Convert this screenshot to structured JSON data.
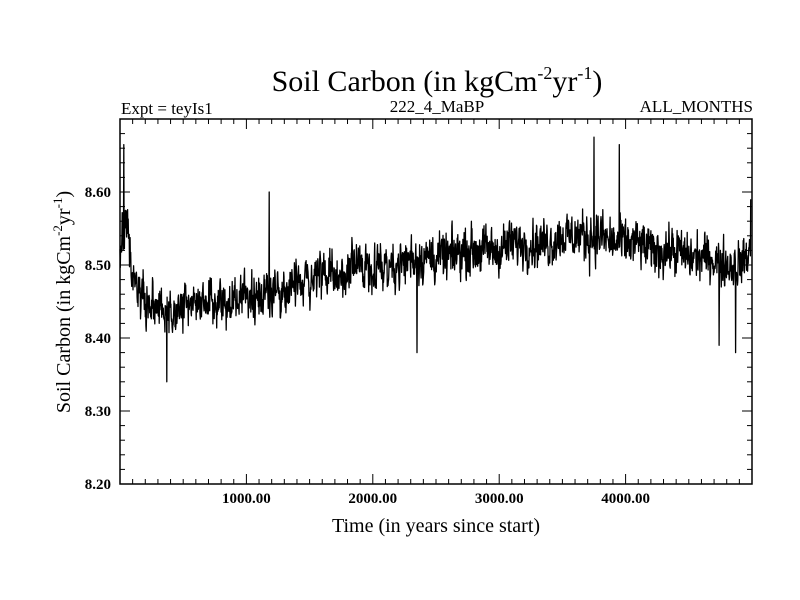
{
  "chart_data": {
    "type": "line",
    "title": {
      "text": "Soil Carbon (in kgCm",
      "sup1": "-2",
      "mid": "yr",
      "sup2": "-1",
      "end": ")"
    },
    "subtitle_left": "Expt = teyIs1",
    "subtitle_center": "222_4_MaBP",
    "subtitle_right": "ALL_MONTHS",
    "xlabel": "Time (in years since start)",
    "ylabel": {
      "text": "Soil Carbon (in kgCm",
      "sup1": "-2",
      "mid": "yr",
      "sup2": "-1",
      "end": ")"
    },
    "xlim": [
      0,
      5000
    ],
    "ylim": [
      8.2,
      8.7
    ],
    "x_ticks": [
      1000,
      2000,
      3000,
      4000
    ],
    "x_tick_labels": [
      "1000.00",
      "2000.00",
      "3000.00",
      "4000.00"
    ],
    "y_ticks": [
      8.2,
      8.3,
      8.4,
      8.5,
      8.6
    ],
    "y_tick_labels": [
      "8.20",
      "8.30",
      "8.40",
      "8.50",
      "8.60"
    ],
    "grid": false,
    "series_color": "#000000",
    "trend": {
      "x": [
        0,
        40,
        100,
        200,
        300,
        400,
        500,
        600,
        700,
        800,
        900,
        1000,
        1100,
        1200,
        1300,
        1400,
        1500,
        1600,
        1700,
        1800,
        1900,
        2000,
        2100,
        2200,
        2300,
        2400,
        2500,
        2600,
        2700,
        2800,
        2900,
        3000,
        3100,
        3200,
        3300,
        3400,
        3500,
        3600,
        3700,
        3800,
        3900,
        4000,
        4100,
        4200,
        4300,
        4400,
        4500,
        4600,
        4700,
        4800,
        4900,
        4990
      ],
      "mean": [
        8.5,
        8.58,
        8.47,
        8.45,
        8.44,
        8.43,
        8.44,
        8.45,
        8.45,
        8.45,
        8.45,
        8.46,
        8.46,
        8.46,
        8.47,
        8.47,
        8.48,
        8.49,
        8.48,
        8.49,
        8.5,
        8.5,
        8.5,
        8.5,
        8.51,
        8.51,
        8.51,
        8.51,
        8.52,
        8.52,
        8.52,
        8.52,
        8.53,
        8.53,
        8.53,
        8.53,
        8.54,
        8.54,
        8.54,
        8.54,
        8.53,
        8.53,
        8.53,
        8.52,
        8.52,
        8.52,
        8.51,
        8.51,
        8.51,
        8.5,
        8.5,
        8.52
      ],
      "amplitude": [
        0.05,
        0.07,
        0.06,
        0.06,
        0.06,
        0.06,
        0.06,
        0.06,
        0.06,
        0.06,
        0.06,
        0.06,
        0.07,
        0.06,
        0.06,
        0.06,
        0.06,
        0.06,
        0.06,
        0.06,
        0.06,
        0.06,
        0.06,
        0.06,
        0.07,
        0.06,
        0.06,
        0.06,
        0.06,
        0.06,
        0.06,
        0.06,
        0.06,
        0.06,
        0.06,
        0.06,
        0.06,
        0.06,
        0.07,
        0.06,
        0.06,
        0.06,
        0.06,
        0.06,
        0.06,
        0.06,
        0.06,
        0.06,
        0.06,
        0.06,
        0.06,
        0.06
      ]
    },
    "extremes": [
      {
        "x": 30,
        "y": 8.665
      },
      {
        "x": 370,
        "y": 8.34
      },
      {
        "x": 1180,
        "y": 8.6
      },
      {
        "x": 2350,
        "y": 8.38
      },
      {
        "x": 3750,
        "y": 8.675
      },
      {
        "x": 3950,
        "y": 8.665
      },
      {
        "x": 4740,
        "y": 8.39
      },
      {
        "x": 4870,
        "y": 8.38
      },
      {
        "x": 4990,
        "y": 8.59
      }
    ]
  }
}
